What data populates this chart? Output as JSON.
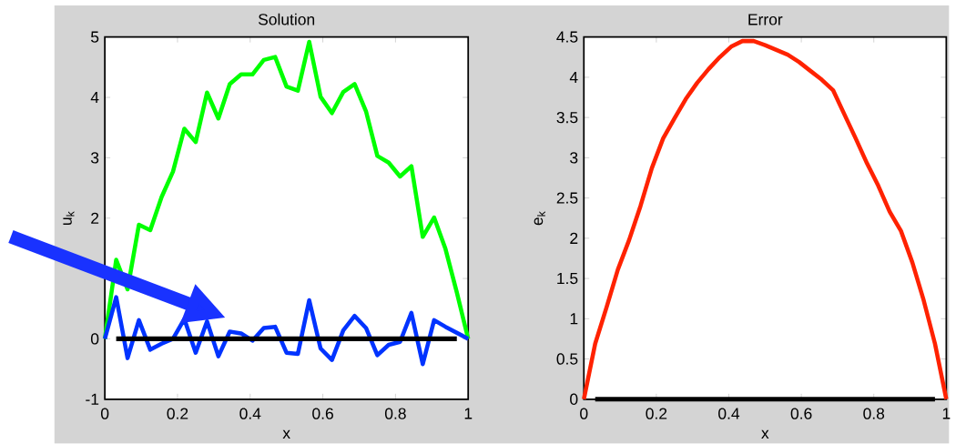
{
  "chart_data": [
    {
      "type": "line",
      "title": "Solution",
      "xlabel": "x",
      "ylabel": "u$_{k}$",
      "x": [
        0,
        0.03125,
        0.0625,
        0.09375,
        0.125,
        0.15625,
        0.1875,
        0.21875,
        0.25,
        0.28125,
        0.3125,
        0.34375,
        0.375,
        0.40625,
        0.4375,
        0.46875,
        0.5,
        0.53125,
        0.5625,
        0.59375,
        0.625,
        0.65625,
        0.6875,
        0.71875,
        0.75,
        0.78125,
        0.8125,
        0.84375,
        0.875,
        0.90625,
        0.9375,
        0.96875,
        1
      ],
      "series": [
        {
          "color": "#00ff00",
          "values": [
            0,
            1.31,
            0.82,
            1.89,
            1.8,
            2.35,
            2.77,
            3.48,
            3.26,
            4.08,
            3.65,
            4.22,
            4.38,
            4.38,
            4.62,
            4.67,
            4.18,
            4.11,
            4.92,
            4.01,
            3.74,
            4.09,
            4.22,
            3.77,
            3.03,
            2.92,
            2.69,
            2.86,
            1.69,
            2.01,
            1.49,
            0.77,
            0
          ]
        },
        {
          "color": "#0033ff",
          "values": [
            0,
            0.69,
            -0.32,
            0.31,
            -0.18,
            -0.08,
            0,
            0.33,
            -0.23,
            0.29,
            -0.29,
            0.12,
            0.09,
            -0.03,
            0.18,
            0.2,
            -0.23,
            -0.25,
            0.64,
            -0.16,
            -0.35,
            0.14,
            0.38,
            0.18,
            -0.27,
            -0.1,
            -0.05,
            0.43,
            -0.42,
            0.31,
            0.2,
            0.1,
            0
          ]
        },
        {
          "color": "#000000",
          "values": [
            null,
            0,
            0,
            0,
            0,
            0,
            0,
            0,
            0,
            0,
            0,
            0,
            0,
            0,
            0,
            0,
            0,
            0,
            0,
            0,
            0,
            0,
            0,
            0,
            0,
            0,
            0,
            0,
            0,
            0,
            0,
            0,
            null
          ]
        }
      ],
      "xlim": [
        0,
        1
      ],
      "xticks": [
        0,
        0.2,
        0.4,
        0.6,
        0.8,
        1
      ],
      "ylim": [
        -1,
        5
      ],
      "yticks": [
        -1,
        0,
        {
          "value": 1,
          "label": null
        },
        2,
        3,
        4,
        5
      ]
    },
    {
      "type": "line",
      "title": "Error",
      "xlabel": "x",
      "ylabel": "e$_{k}$",
      "x": [
        0,
        0.03125,
        0.0625,
        0.09375,
        0.125,
        0.15625,
        0.1875,
        0.21875,
        0.25,
        0.28125,
        0.3125,
        0.34375,
        0.375,
        0.40625,
        0.4375,
        0.46875,
        0.5,
        0.53125,
        0.5625,
        0.59375,
        0.625,
        0.65625,
        0.6875,
        0.71875,
        0.75,
        0.78125,
        0.8125,
        0.84375,
        0.875,
        0.90625,
        0.9375,
        0.96875,
        1
      ],
      "series": [
        {
          "color": "#ff2200",
          "values": [
            0,
            0.69,
            1.14,
            1.61,
            1.98,
            2.4,
            2.87,
            3.24,
            3.49,
            3.73,
            3.93,
            4.1,
            4.25,
            4.38,
            4.45,
            4.45,
            4.4,
            4.34,
            4.28,
            4.19,
            4.08,
            3.97,
            3.84,
            3.54,
            3.24,
            2.93,
            2.65,
            2.33,
            2.09,
            1.7,
            1.23,
            0.69,
            0
          ]
        },
        {
          "color": "#000000",
          "values": [
            null,
            0,
            0,
            0,
            0,
            0,
            0,
            0,
            0,
            0,
            0,
            0,
            0,
            0,
            0,
            0,
            0,
            0,
            0,
            0,
            0,
            0,
            0,
            0,
            0,
            0,
            0,
            0,
            0,
            0,
            0,
            0,
            null
          ]
        }
      ],
      "xlim": [
        0,
        1
      ],
      "xticks": [
        0,
        0.2,
        0.4,
        0.6,
        0.8,
        1
      ],
      "ylim": [
        0,
        4.5
      ],
      "yticks": [
        0,
        0.5,
        1,
        1.5,
        2,
        2.5,
        3,
        3.5,
        4,
        4.5
      ]
    }
  ]
}
